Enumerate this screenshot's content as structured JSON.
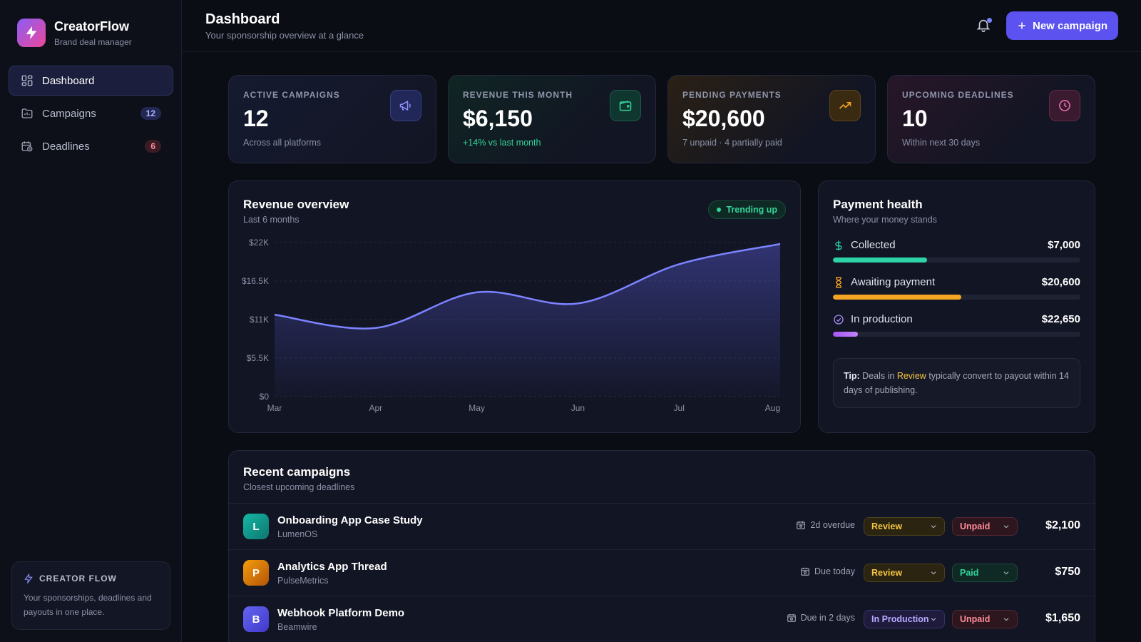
{
  "brand": {
    "name": "CreatorFlow",
    "tagline": "Brand deal manager"
  },
  "sidebar": {
    "items": [
      {
        "label": "Dashboard",
        "icon": "dashboard-icon",
        "badge": null
      },
      {
        "label": "Campaigns",
        "icon": "folder-icon",
        "badge": "12"
      },
      {
        "label": "Deadlines",
        "icon": "calendar-clock-icon",
        "badge": "6"
      }
    ],
    "card": {
      "title": "CREATOR FLOW",
      "text": "Your sponsorships, deadlines and payouts in one place."
    }
  },
  "header": {
    "title": "Dashboard",
    "subtitle": "Your sponsorship overview at a glance",
    "new_campaign_label": "New campaign"
  },
  "stats": [
    {
      "label": "ACTIVE CAMPAIGNS",
      "value": "12",
      "foot": "Across all platforms",
      "icon": "megaphone-icon"
    },
    {
      "label": "REVENUE THIS MONTH",
      "value": "$6,150",
      "foot": "+14% vs last month",
      "icon": "wallet-icon"
    },
    {
      "label": "PENDING PAYMENTS",
      "value": "$20,600",
      "foot": "7 unpaid · 4 partially paid",
      "icon": "trending-up-icon"
    },
    {
      "label": "UPCOMING DEADLINES",
      "value": "10",
      "foot": "Within next 30 days",
      "icon": "clock-icon"
    }
  ],
  "revenue": {
    "title": "Revenue overview",
    "subtitle": "Last 6 months",
    "pill": "Trending up"
  },
  "chart_data": {
    "type": "area",
    "categories": [
      "Mar",
      "Apr",
      "May",
      "Jun",
      "Jul",
      "Aug"
    ],
    "values": [
      11700,
      9800,
      14900,
      13300,
      18900,
      21800
    ],
    "ylim": [
      0,
      22000
    ],
    "yticks": [
      "$22K",
      "$16.5K",
      "$11K",
      "$5.5K",
      "$0"
    ],
    "ytick_values": [
      22000,
      16500,
      11000,
      5500,
      0
    ],
    "color": "#7c83ff",
    "grid": true
  },
  "payment_health": {
    "title": "Payment health",
    "subtitle": "Where your money stands",
    "rows": [
      {
        "label": "Collected",
        "value": "$7,000",
        "icon": "dollar-icon",
        "fraction": 0.38,
        "color": "#2dd4a8"
      },
      {
        "label": "Awaiting payment",
        "value": "$20,600",
        "icon": "hourglass-icon",
        "fraction": 0.52,
        "color": "#f5a524"
      },
      {
        "label": "In production",
        "value": "$22,650",
        "icon": "check-circle-icon",
        "fraction": 0.1,
        "color": "#a78bfa"
      }
    ],
    "tip": {
      "prefix": "Tip:",
      "before": "Deals in",
      "highlight": "Review",
      "after": "typically convert to payout within 14 days of publishing."
    }
  },
  "campaigns": {
    "title": "Recent campaigns",
    "subtitle": "Closest upcoming deadlines",
    "rows": [
      {
        "initial": "L",
        "name": "Onboarding App Case Study",
        "brand": "LumenOS",
        "due": "2d overdue",
        "status": "Review",
        "payment": "Unpaid",
        "amount": "$2,100"
      },
      {
        "initial": "P",
        "name": "Analytics App Thread",
        "brand": "PulseMetrics",
        "due": "Due today",
        "status": "Review",
        "payment": "Paid",
        "amount": "$750"
      },
      {
        "initial": "B",
        "name": "Webhook Platform Demo",
        "brand": "Beamwire",
        "due": "Due in 2 days",
        "status": "In Production",
        "payment": "Unpaid",
        "amount": "$1,650"
      }
    ]
  }
}
